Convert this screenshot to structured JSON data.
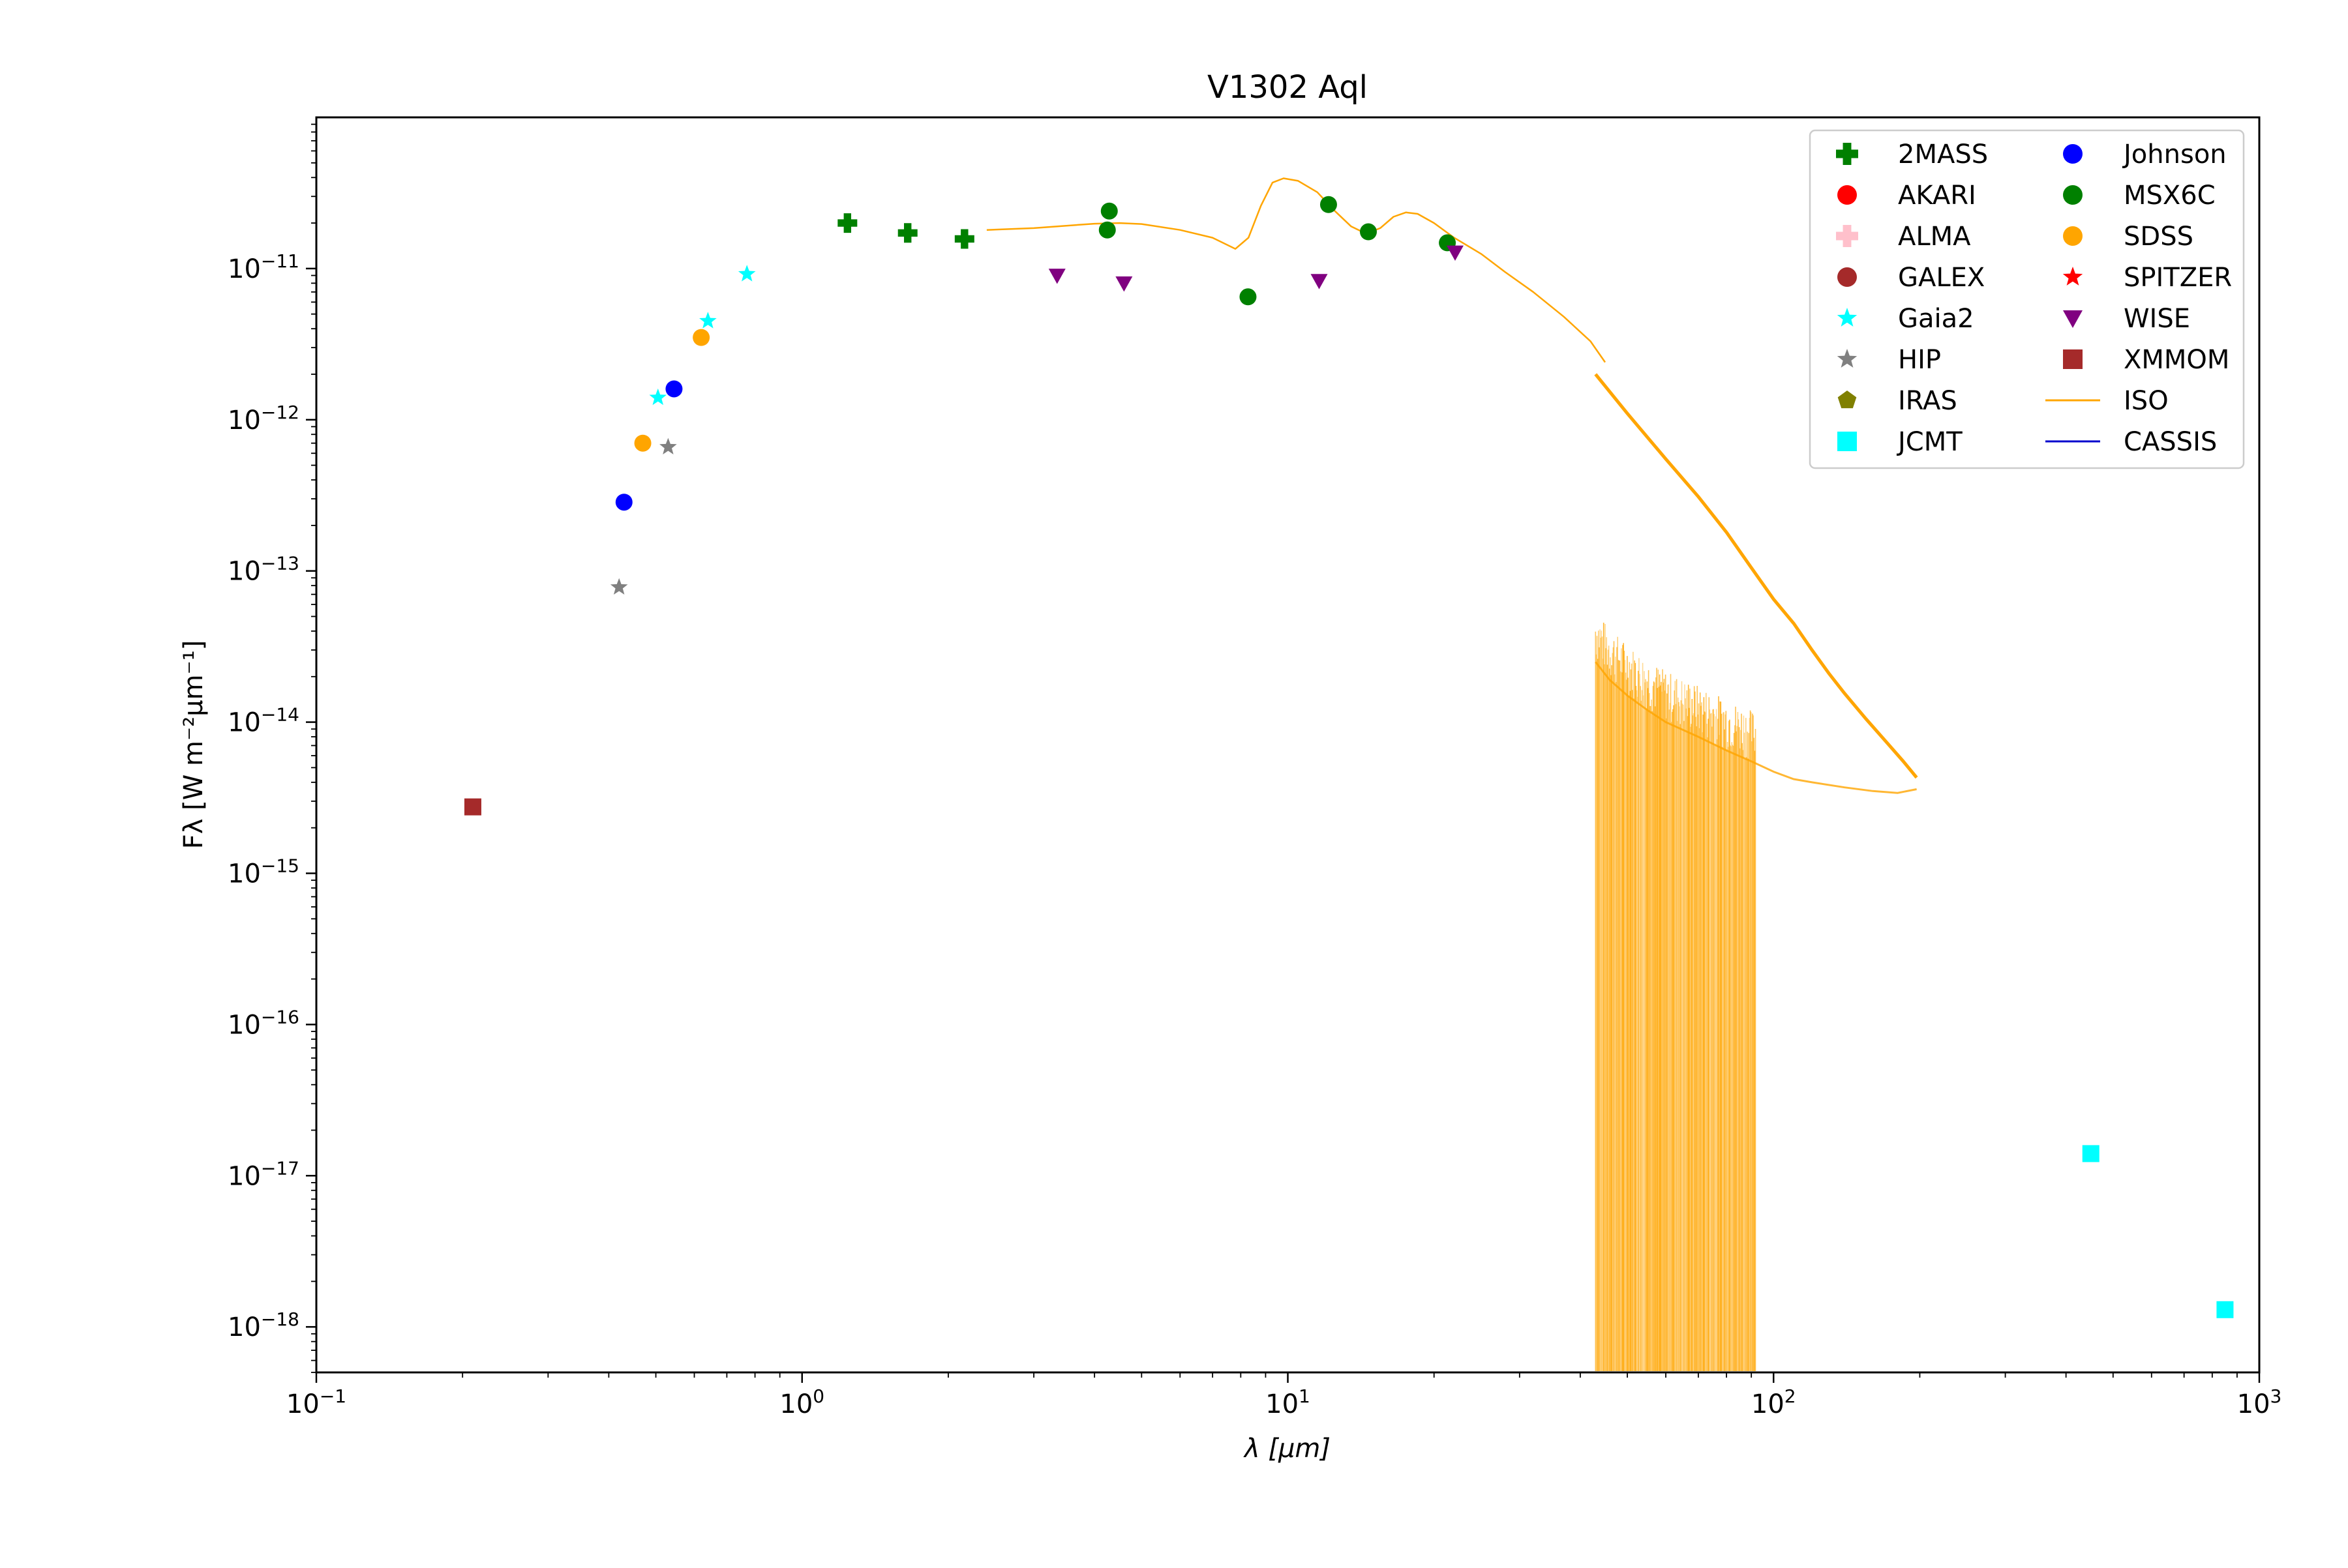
{
  "chart_data": {
    "type": "scatter",
    "title": "V1302 Aql",
    "xlabel": "λ [μm]",
    "ylabel": "Fλ [W m⁻²μm⁻¹]",
    "xscale": "log",
    "yscale": "log",
    "xlim": [
      0.1,
      1000
    ],
    "ylim": [
      5e-19,
      1e-10
    ],
    "grid": false,
    "legend_position": "top-right",
    "x_ticks": [
      {
        "value": 0.1,
        "base": "10",
        "exp": "−1"
      },
      {
        "value": 1,
        "base": "10",
        "exp": "0"
      },
      {
        "value": 10,
        "base": "10",
        "exp": "1"
      },
      {
        "value": 100,
        "base": "10",
        "exp": "2"
      },
      {
        "value": 1000,
        "base": "10",
        "exp": "3"
      }
    ],
    "y_ticks": [
      {
        "value": 1e-18,
        "base": "10",
        "exp": "−18"
      },
      {
        "value": 1e-17,
        "base": "10",
        "exp": "−17"
      },
      {
        "value": 1e-16,
        "base": "10",
        "exp": "−16"
      },
      {
        "value": 1e-15,
        "base": "10",
        "exp": "−15"
      },
      {
        "value": 1e-14,
        "base": "10",
        "exp": "−14"
      },
      {
        "value": 1e-13,
        "base": "10",
        "exp": "−13"
      },
      {
        "value": 1e-12,
        "base": "10",
        "exp": "−12"
      },
      {
        "value": 1e-11,
        "base": "10",
        "exp": "−11"
      }
    ],
    "series": [
      {
        "name": "2MASS",
        "marker": "plus",
        "color": "#008000",
        "points": [
          [
            1.24,
            2e-11
          ],
          [
            1.65,
            1.72e-11
          ],
          [
            2.16,
            1.57e-11
          ]
        ]
      },
      {
        "name": "AKARI",
        "marker": "circle",
        "color": "#ff0000",
        "points": []
      },
      {
        "name": "ALMA",
        "marker": "plus",
        "color": "#ffc0cb",
        "points": []
      },
      {
        "name": "GALEX",
        "marker": "circle",
        "color": "#a52a2a",
        "points": []
      },
      {
        "name": "Gaia2",
        "marker": "star",
        "color": "#00ffff",
        "points": [
          [
            0.505,
            1.4e-12
          ],
          [
            0.64,
            4.5e-12
          ],
          [
            0.77,
            9.2e-12
          ]
        ]
      },
      {
        "name": "HIP",
        "marker": "star",
        "color": "#808080",
        "points": [
          [
            0.42,
            7.8e-14
          ],
          [
            0.53,
            6.6e-13
          ]
        ]
      },
      {
        "name": "IRAS",
        "marker": "pentagon",
        "color": "#808000",
        "points": []
      },
      {
        "name": "JCMT",
        "marker": "square",
        "color": "#00ffff",
        "points": [
          [
            450,
            1.4e-17
          ],
          [
            850,
            1.3e-18
          ]
        ]
      },
      {
        "name": "Johnson",
        "marker": "circle",
        "color": "#0000ff",
        "points": [
          [
            0.43,
            2.85e-13
          ],
          [
            0.545,
            1.6e-12
          ]
        ]
      },
      {
        "name": "MSX6C",
        "marker": "circle",
        "color": "#008000",
        "points": [
          [
            4.29,
            2.4e-11
          ],
          [
            4.25,
            1.8e-11
          ],
          [
            8.28,
            6.5e-12
          ],
          [
            12.13,
            2.65e-11
          ],
          [
            14.65,
            1.75e-11
          ],
          [
            21.3,
            1.48e-11
          ]
        ]
      },
      {
        "name": "SDSS",
        "marker": "circle",
        "color": "#ffa500",
        "points": [
          [
            0.47,
            7e-13
          ],
          [
            0.62,
            3.5e-12
          ]
        ]
      },
      {
        "name": "SPITZER",
        "marker": "star",
        "color": "#ff0000",
        "points": []
      },
      {
        "name": "WISE",
        "marker": "triangle-down",
        "color": "#800080",
        "points": [
          [
            3.35,
            9e-12
          ],
          [
            4.6,
            8e-12
          ],
          [
            11.6,
            8.3e-12
          ],
          [
            22.1,
            1.28e-11
          ]
        ]
      },
      {
        "name": "XMMOM",
        "marker": "square",
        "color": "#a52a2a",
        "points": [
          [
            0.21,
            2.75e-15
          ]
        ]
      },
      {
        "name": "ISO",
        "marker": "line",
        "color": "#ffa500",
        "sws_points": [
          [
            2.4,
            1.8e-11
          ],
          [
            3.0,
            1.85e-11
          ],
          [
            3.5,
            1.92e-11
          ],
          [
            4.0,
            1.98e-11
          ],
          [
            4.5,
            2e-11
          ],
          [
            5.0,
            1.97e-11
          ],
          [
            6.0,
            1.8e-11
          ],
          [
            7.0,
            1.6e-11
          ],
          [
            7.8,
            1.35e-11
          ],
          [
            8.3,
            1.6e-11
          ],
          [
            8.8,
            2.6e-11
          ],
          [
            9.3,
            3.7e-11
          ],
          [
            9.8,
            3.95e-11
          ],
          [
            10.5,
            3.8e-11
          ],
          [
            11.5,
            3.2e-11
          ],
          [
            12.5,
            2.4e-11
          ],
          [
            13.5,
            1.9e-11
          ],
          [
            14.5,
            1.7e-11
          ],
          [
            15.5,
            1.85e-11
          ],
          [
            16.5,
            2.2e-11
          ],
          [
            17.5,
            2.35e-11
          ],
          [
            18.5,
            2.3e-11
          ],
          [
            20,
            2e-11
          ],
          [
            22,
            1.6e-11
          ],
          [
            25,
            1.25e-11
          ],
          [
            28,
            9.5e-12
          ],
          [
            32,
            7e-12
          ],
          [
            37,
            4.8e-12
          ],
          [
            42,
            3.3e-12
          ],
          [
            45,
            2.4e-12
          ]
        ],
        "lws_upper": [
          [
            43,
            2e-12
          ],
          [
            50,
            1.1e-12
          ],
          [
            60,
            5.5e-13
          ],
          [
            70,
            3.1e-13
          ],
          [
            80,
            1.8e-13
          ],
          [
            90,
            1.05e-13
          ],
          [
            100,
            6.5e-14
          ],
          [
            110,
            4.5e-14
          ],
          [
            120,
            3e-14
          ],
          [
            130,
            2.1e-14
          ],
          [
            140,
            1.55e-14
          ],
          [
            155,
            1.05e-14
          ],
          [
            170,
            7.5e-15
          ],
          [
            185,
            5.5e-15
          ],
          [
            197,
            4.3e-15
          ]
        ],
        "lws_lower": [
          [
            43,
            2.5e-14
          ],
          [
            46,
            1.9e-14
          ],
          [
            50,
            1.5e-14
          ],
          [
            55,
            1.2e-14
          ],
          [
            60,
            1e-14
          ],
          [
            70,
            8e-15
          ],
          [
            80,
            6.5e-15
          ],
          [
            90,
            5.5e-15
          ],
          [
            100,
            4.7e-15
          ],
          [
            110,
            4.2e-15
          ],
          [
            120,
            4e-15
          ],
          [
            140,
            3.7e-15
          ],
          [
            160,
            3.5e-15
          ],
          [
            180,
            3.4e-15
          ],
          [
            197,
            3.6e-15
          ]
        ]
      },
      {
        "name": "CASSIS",
        "marker": "line",
        "color": "#0000cd",
        "points": []
      }
    ]
  }
}
